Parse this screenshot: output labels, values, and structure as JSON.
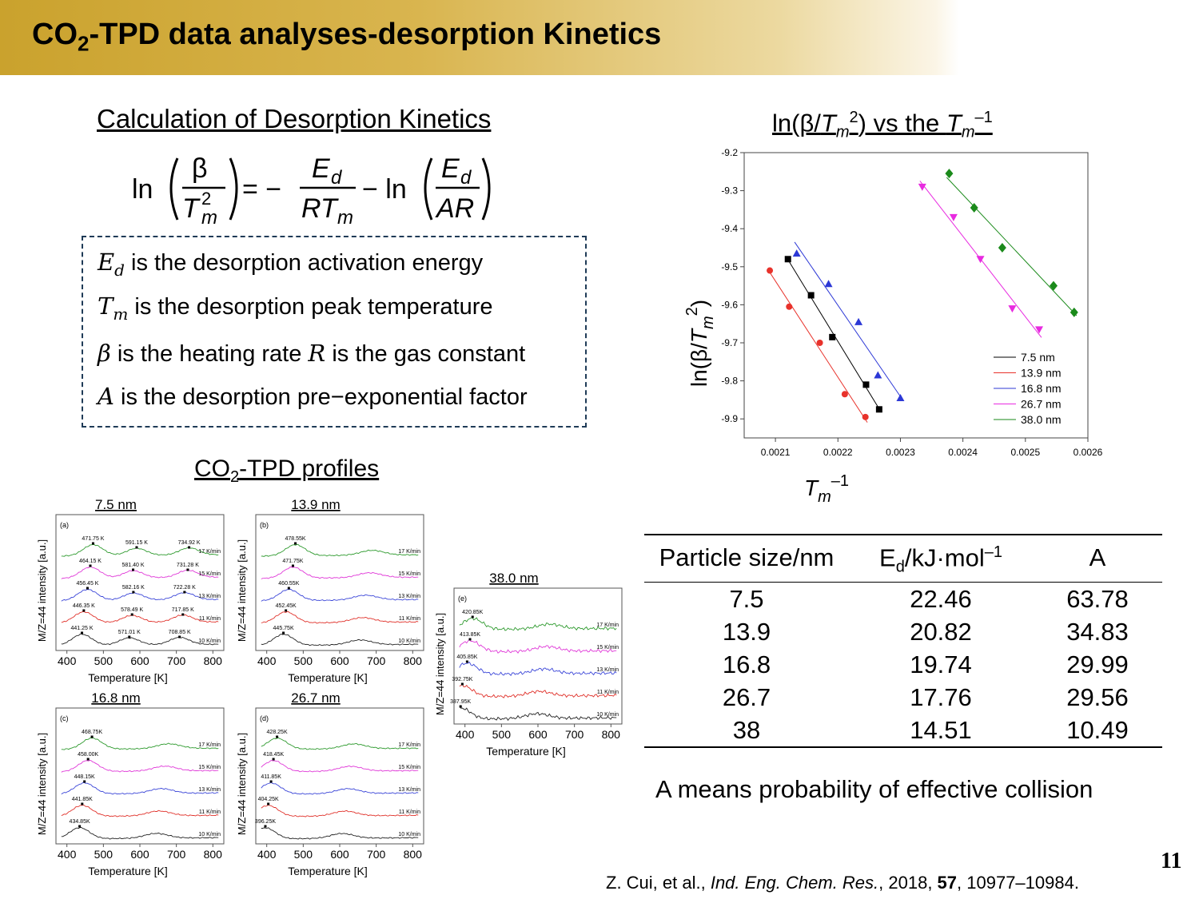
{
  "title": {
    "main": "CO",
    "sub": "2",
    "rest": "-TPD data analyses-desorption Kinetics"
  },
  "calc_heading": "Calculation of Desorption Kinetics",
  "equation": {
    "ln1": "ln",
    "beta": "β",
    "Tm": "T",
    "m": "m",
    "sq": "2",
    "eq": "= −",
    "Ed": "E",
    "d": "d",
    "R": "RT",
    "minus_ln": "− ln",
    "AR": "AR"
  },
  "definitions": [
    {
      "sym": "E",
      "sub": "d",
      "text": " is the desorption activation energy"
    },
    {
      "sym": "T",
      "sub": "m",
      "text": " is the desorption peak temperature"
    },
    {
      "sym": "β",
      "sub": "",
      "text": " is the heating rate ",
      "sym2": "R",
      "text2": " is the gas constant"
    },
    {
      "sym": "A",
      "sub": "",
      "text": " is the desorption pre−exponential factor"
    }
  ],
  "profiles_heading": {
    "a": "CO",
    "sub": "2",
    "b": "-TPD profiles"
  },
  "chart_heading": {
    "a": "ln(β/",
    "b": "T",
    "c": "m",
    "d": "2",
    "e": ") vs the ",
    "f": "T",
    "g": "m",
    "h": "–1"
  },
  "chart_data": [
    {
      "type": "scatter",
      "xlabel_parts": [
        "T",
        "m",
        "–1"
      ],
      "ylabel_parts": [
        "ln(β/",
        "T",
        "m",
        "2",
        ")"
      ],
      "xlim": [
        0.00205,
        0.0026
      ],
      "ylim": [
        -9.95,
        -9.2
      ],
      "xticks": [
        "0.0021",
        "0.0022",
        "0.0023",
        "0.0024",
        "0.0025",
        "0.0026"
      ],
      "xtick_values": [
        0.0021,
        0.0022,
        0.0023,
        0.0024,
        0.0025,
        0.0026
      ],
      "yticks": [
        "-9.2",
        "-9.3",
        "-9.4",
        "-9.5",
        "-9.6",
        "-9.7",
        "-9.8",
        "-9.9"
      ],
      "ytick_values": [
        -9.2,
        -9.3,
        -9.4,
        -9.5,
        -9.6,
        -9.7,
        -9.8,
        -9.9
      ],
      "legend_position": "bottom-right",
      "series": [
        {
          "name": "7.5 nm",
          "color": "#000000",
          "marker": "square",
          "x": [
            0.00212,
            0.002157,
            0.002191,
            0.002245,
            0.002266
          ],
          "y": [
            -9.48,
            -9.575,
            -9.685,
            -9.81,
            -9.875
          ]
        },
        {
          "name": "13.9 nm",
          "color": "#e8322b",
          "marker": "circle",
          "x": [
            0.002091,
            0.002122,
            0.002171,
            0.002211,
            0.002244
          ],
          "y": [
            -9.51,
            -9.605,
            -9.7,
            -9.835,
            -9.895
          ]
        },
        {
          "name": "16.8 nm",
          "color": "#2c38d6",
          "marker": "triangle-up",
          "x": [
            0.002134,
            0.002185,
            0.002233,
            0.002264,
            0.0023
          ],
          "y": [
            -9.465,
            -9.545,
            -9.645,
            -9.785,
            -9.845
          ]
        },
        {
          "name": "26.7 nm",
          "color": "#e82ae0",
          "marker": "triangle-down",
          "x": [
            0.002335,
            0.002385,
            0.002428,
            0.002479,
            0.002522
          ],
          "y": [
            -9.29,
            -9.37,
            -9.48,
            -9.61,
            -9.665
          ]
        },
        {
          "name": "38.0 nm",
          "color": "#1a8a1a",
          "marker": "diamond",
          "x": [
            0.002378,
            0.002418,
            0.002463,
            0.002545,
            0.002578
          ],
          "y": [
            -9.255,
            -9.345,
            -9.45,
            -9.55,
            -9.62
          ]
        }
      ]
    },
    {
      "type": "line",
      "title": "7.5 nm",
      "panel": "(a)",
      "xlabel": "Temperature [K]",
      "ylabel": "M/Z=44 intensity [a.u.]",
      "xticks": [
        "400",
        "500",
        "600",
        "700",
        "800"
      ],
      "xlim": [
        370,
        830
      ],
      "rates": [
        "17 K/min",
        "15 K/min",
        "13 K/min",
        "11 K/min",
        "10 K/min"
      ],
      "peaks": [
        [
          "471.75 K",
          "591.15 K",
          "734.92 K"
        ],
        [
          "464.15 K",
          "581.40 K",
          "731.28 K"
        ],
        [
          "456.45 K",
          "582.16 K",
          "722.28 K"
        ],
        [
          "446.35 K",
          "578.49 K",
          "717.85 K"
        ],
        [
          "441.25 K",
          "571.01 K",
          "708.85 K"
        ]
      ],
      "peak_x": [
        [
          471.75,
          591.15,
          734.92
        ],
        [
          464.15,
          581.4,
          731.28
        ],
        [
          456.45,
          582.16,
          722.28
        ],
        [
          446.35,
          578.49,
          717.85
        ],
        [
          441.25,
          571.01,
          708.85
        ]
      ]
    },
    {
      "type": "line",
      "title": "13.9 nm",
      "panel": "(b)",
      "xlabel": "Temperature [K]",
      "ylabel": "M/Z=44 intensity [a.u.]",
      "xticks": [
        "400",
        "500",
        "600",
        "700",
        "800"
      ],
      "xlim": [
        370,
        830
      ],
      "rates": [
        "17 K/min",
        "15 K/min",
        "13 K/min",
        "11 K/min",
        "10 K/min"
      ],
      "peaks": [
        [
          "478.55K"
        ],
        [
          "471.75K"
        ],
        [
          "460.55K"
        ],
        [
          "452.45K"
        ],
        [
          "445.75K"
        ]
      ],
      "peak_x": [
        [
          478.55
        ],
        [
          471.75
        ],
        [
          460.55
        ],
        [
          452.45
        ],
        [
          445.75
        ]
      ]
    },
    {
      "type": "line",
      "title": "16.8 nm",
      "panel": "(c)",
      "xlabel": "Temperature [K]",
      "ylabel": "M/Z=44 intensity [a.u.]",
      "xticks": [
        "400",
        "500",
        "600",
        "700",
        "800"
      ],
      "xlim": [
        370,
        830
      ],
      "rates": [
        "17 K/min",
        "15 K/min",
        "13 K/min",
        "11 K/min",
        "10 K/min"
      ],
      "peaks": [
        [
          "468.75K"
        ],
        [
          "458.00K"
        ],
        [
          "448.15K"
        ],
        [
          "441.85K"
        ],
        [
          "434.85K"
        ]
      ],
      "peak_x": [
        [
          468.75
        ],
        [
          458.0
        ],
        [
          448.15
        ],
        [
          441.85
        ],
        [
          434.85
        ]
      ]
    },
    {
      "type": "line",
      "title": "26.7 nm",
      "panel": "(d)",
      "xlabel": "Temperature [K]",
      "ylabel": "M/Z=44 intensity [a.u.]",
      "xticks": [
        "400",
        "500",
        "600",
        "700",
        "800"
      ],
      "xlim": [
        370,
        830
      ],
      "rates": [
        "17 K/min",
        "15 K/min",
        "13 K/min",
        "11 K/min",
        "10 K/min"
      ],
      "peaks": [
        [
          "428.25K"
        ],
        [
          "418.45K"
        ],
        [
          "411.85K"
        ],
        [
          "404.25K"
        ],
        [
          "396.25K"
        ]
      ],
      "peak_x": [
        [
          428.25
        ],
        [
          418.45
        ],
        [
          411.85
        ],
        [
          404.25
        ],
        [
          396.25
        ]
      ]
    },
    {
      "type": "line",
      "title": "38.0 nm",
      "panel": "(e)",
      "xlabel": "Temperature [K]",
      "ylabel": "M/Z=44 intensity [a.u.]",
      "xticks": [
        "400",
        "500",
        "600",
        "700",
        "800"
      ],
      "xlim": [
        370,
        830
      ],
      "rates": [
        "17 K/min",
        "15 K/min",
        "13 K/min",
        "11 K/min",
        "10 K/min"
      ],
      "peaks": [
        [
          "420.85K"
        ],
        [
          "413.85K"
        ],
        [
          "405.85K"
        ],
        [
          "392.75K"
        ],
        [
          "387.95K"
        ]
      ],
      "peak_x": [
        [
          420.85
        ],
        [
          413.85
        ],
        [
          405.85
        ],
        [
          392.75
        ],
        [
          387.95
        ]
      ]
    }
  ],
  "curve_colors": [
    "#2e9a2e",
    "#e03ad8",
    "#3b46d8",
    "#e0312a",
    "#222222"
  ],
  "table": {
    "headers": [
      "Particle size/nm",
      "E",
      "d",
      "/kJ·mol",
      "–1",
      "A"
    ],
    "rows": [
      [
        "7.5",
        "22.46",
        "63.78"
      ],
      [
        "13.9",
        "20.82",
        "34.83"
      ],
      [
        "16.8",
        "19.74",
        "29.99"
      ],
      [
        "26.7",
        "17.76",
        "29.56"
      ],
      [
        "38",
        "14.51",
        "10.49"
      ]
    ]
  },
  "note": "A means probability of effective collision",
  "page_number": "11",
  "citation": {
    "a": "Z. Cui, et al., ",
    "journal": "Ind. Eng. Chem. Res.",
    "b": ", 2018, ",
    "vol": "57",
    "c": ", 10977–10984."
  }
}
